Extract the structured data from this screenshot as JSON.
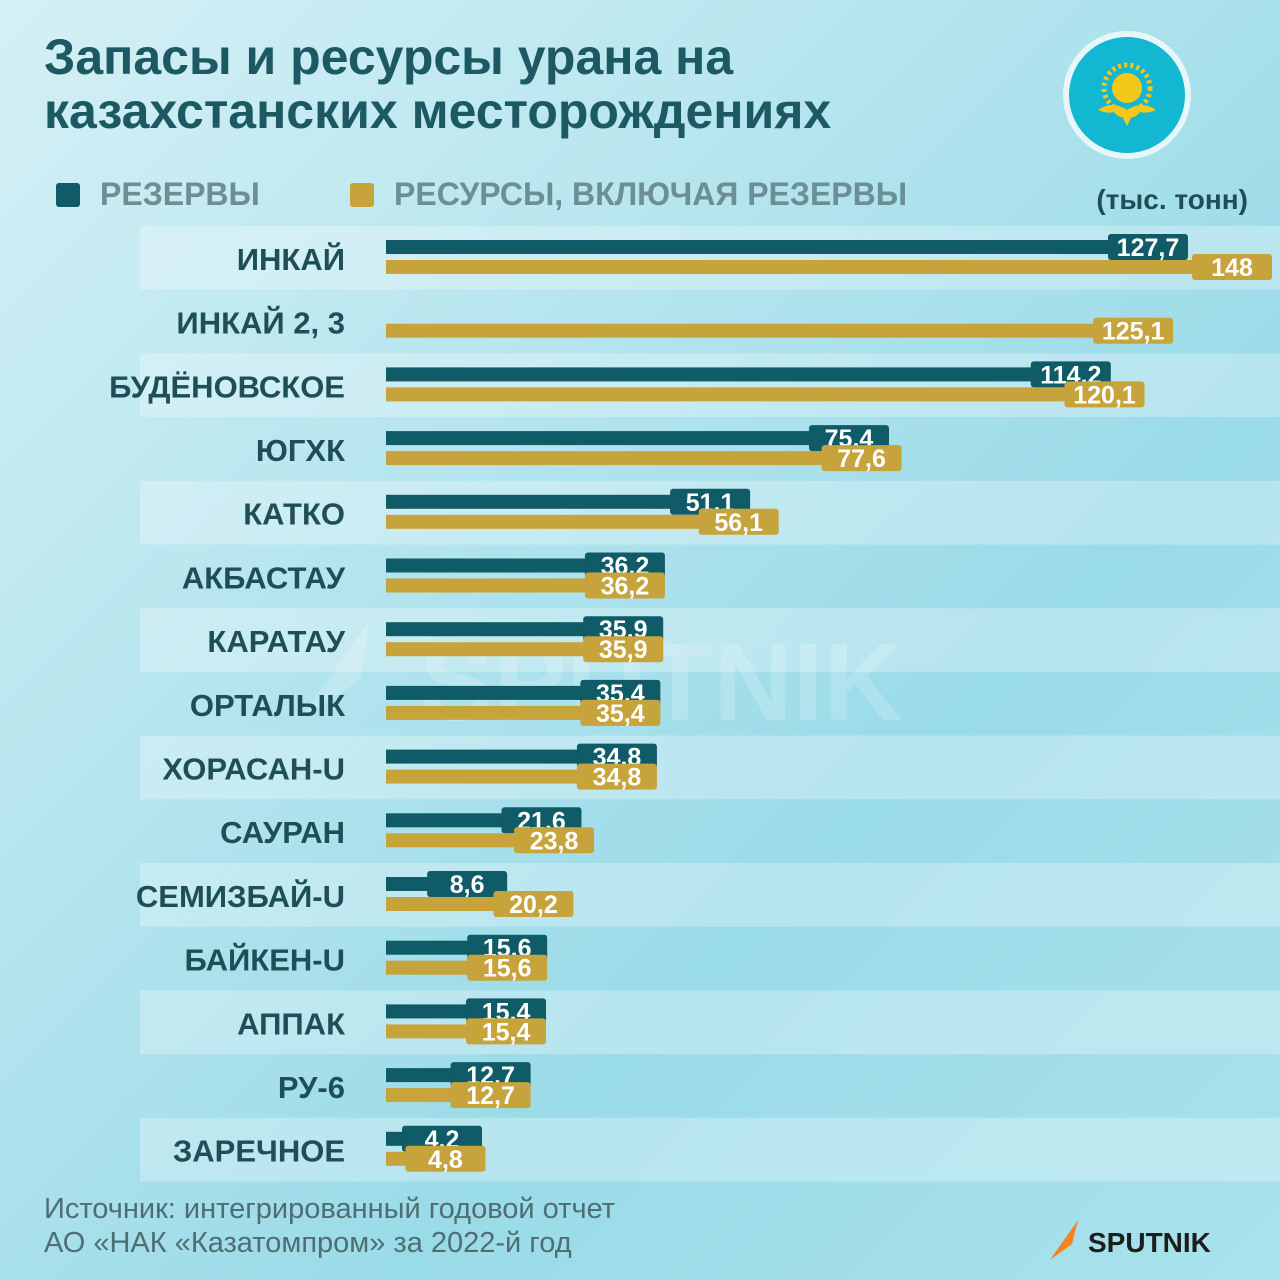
{
  "title_line1": "Запасы и ресурсы урана на",
  "title_line2": "казахстанских месторождениях",
  "unit": "(тыс. тонн)",
  "source_line1": "Источник: интегрированный годовой отчет",
  "source_line2": "АО «НАК «Казатомпром» за 2022-й год",
  "brand": "SPUTNIK",
  "watermark": "SPUTNIK",
  "colors": {
    "reserves": "#0f5b67",
    "resources": "#c7a33c",
    "title": "#1d5963",
    "legend_text": "#6b8f93",
    "flag": "#13b7d1",
    "flag_symbol": "#f3c81a",
    "brand_accent": "#f58220"
  },
  "chart_data": {
    "type": "bar",
    "orientation": "horizontal",
    "categories": [
      "ИНКАЙ",
      "ИНКАЙ 2, 3",
      "БУДЁНОВСКОЕ",
      "ЮГХК",
      "КАТКО",
      "АКБАСТАУ",
      "КАРАТАУ",
      "ОРТАЛЫК",
      "ХОРАСАН-U",
      "САУРАН",
      "СЕМИЗБАЙ-U",
      "БАЙКЕН-U",
      "АППАК",
      "РУ-6",
      "ЗАРЕЧНОЕ"
    ],
    "series": [
      {
        "name": "РЕЗЕРВЫ",
        "values": [
          127.7,
          null,
          114.2,
          75.4,
          51.1,
          36.2,
          35.9,
          35.4,
          34.8,
          21.6,
          8.6,
          15.6,
          15.4,
          12.7,
          4.2
        ],
        "labels": [
          "127,7",
          "",
          "114,2",
          "75,4",
          "51,1",
          "36,2",
          "35,9",
          "35,4",
          "34,8",
          "21,6",
          "8,6",
          "15,6",
          "15,4",
          "12,7",
          "4,2"
        ]
      },
      {
        "name": "РЕСУРСЫ, ВКЛЮЧАЯ РЕЗЕРВЫ",
        "values": [
          148,
          125.1,
          120.1,
          77.6,
          56.1,
          36.2,
          35.9,
          35.4,
          34.8,
          23.8,
          20.2,
          15.6,
          15.4,
          12.7,
          4.8
        ],
        "labels": [
          "148",
          "125,1",
          "120,1",
          "77,6",
          "56,1",
          "36,2",
          "35,9",
          "35,4",
          "34,8",
          "23,8",
          "20,2",
          "15,6",
          "15,4",
          "12,7",
          "4,8"
        ]
      }
    ],
    "unit": "тыс. тонн",
    "xlim": [
      0,
      148
    ],
    "legend": "top"
  }
}
